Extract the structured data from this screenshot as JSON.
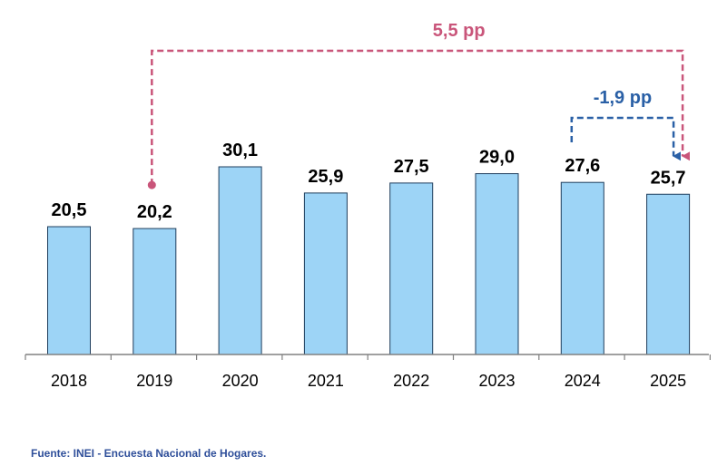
{
  "chart_data": {
    "type": "bar",
    "title": "",
    "xlabel": "",
    "ylabel": "",
    "categories": [
      "2018",
      "2019",
      "2020",
      "2021",
      "2022",
      "2023",
      "2024",
      "2025"
    ],
    "values": [
      20.5,
      20.2,
      30.1,
      25.9,
      27.5,
      29.0,
      27.6,
      25.7
    ],
    "value_labels": [
      "20,5",
      "20,2",
      "30,1",
      "25,9",
      "27,5",
      "29,0",
      "27,6",
      "25,7"
    ],
    "ylim": [
      0,
      30.1
    ],
    "grid": false,
    "legend": "none",
    "annotations": [
      {
        "text": "5,5 pp",
        "from": "2019",
        "to": "2025",
        "color": "#C9557A"
      },
      {
        "text": "-1,9 pp",
        "from": "2024",
        "to": "2025",
        "color": "#2A60A6"
      }
    ]
  },
  "colors": {
    "bar_fill": "#9DD4F6",
    "bar_stroke": "#1E3D5C",
    "axis": "#808080"
  },
  "source": "Fuente: INEI - Encuesta Nacional de Hogares."
}
